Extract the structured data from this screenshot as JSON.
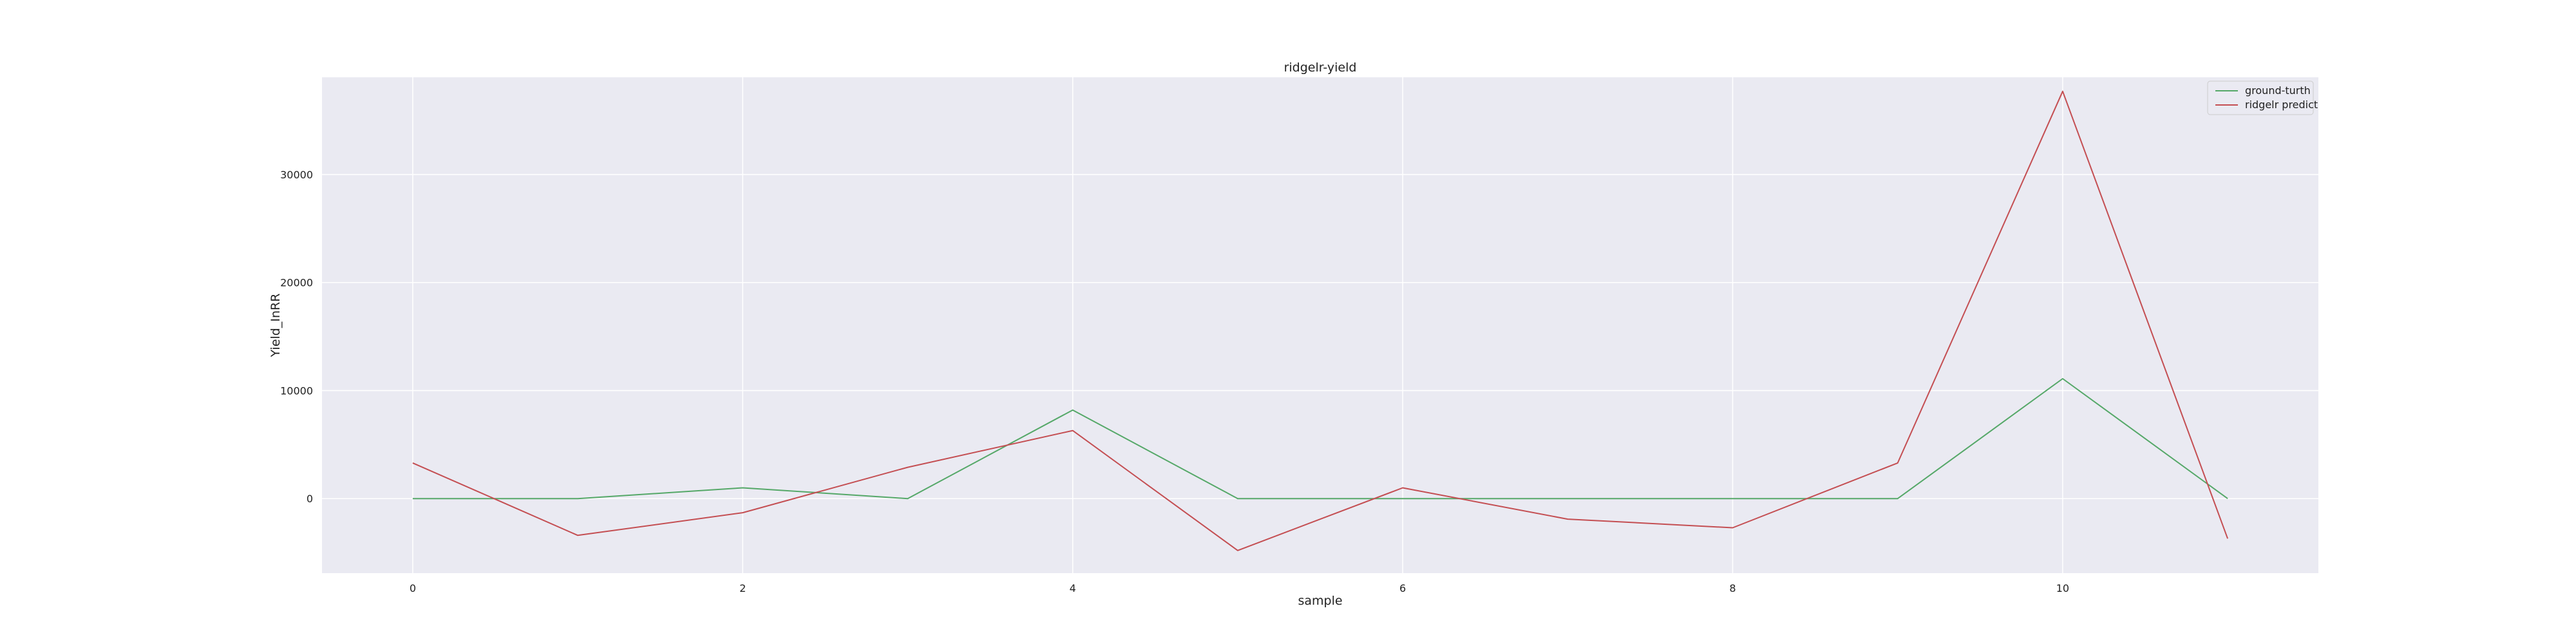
{
  "chart_data": {
    "type": "line",
    "title": "ridgelr-yield",
    "xlabel": "sample",
    "ylabel": "Yield_InRR",
    "x": [
      0,
      1,
      2,
      3,
      4,
      5,
      6,
      7,
      8,
      9,
      10,
      11
    ],
    "xlim": [
      -0.55,
      11.55
    ],
    "ylim": [
      -6900,
      39000
    ],
    "xticks": [
      0,
      2,
      4,
      6,
      8,
      10
    ],
    "yticks": [
      0,
      10000,
      20000,
      30000
    ],
    "grid": true,
    "legend_position": "top-right",
    "background": "#eaeaf2",
    "series": [
      {
        "name": "ground-turth",
        "color": "#55a868",
        "values": [
          0,
          0,
          1000,
          0,
          8200,
          0,
          0,
          0,
          0,
          0,
          11100,
          0
        ]
      },
      {
        "name": "ridgelr predict",
        "color": "#c44e52",
        "values": [
          3300,
          -3400,
          -1300,
          2900,
          6300,
          -4800,
          1000,
          -1900,
          -2700,
          3300,
          37700,
          -3700
        ]
      }
    ]
  }
}
